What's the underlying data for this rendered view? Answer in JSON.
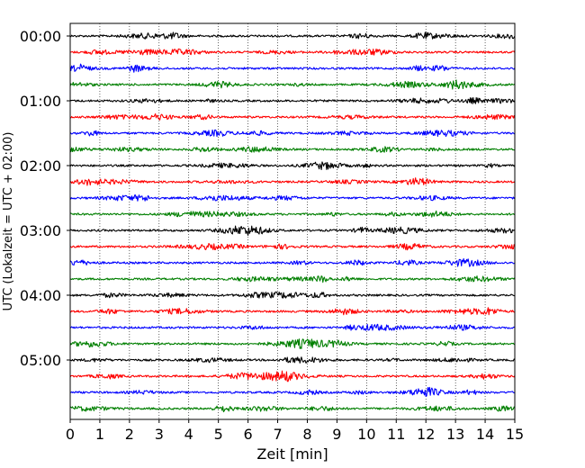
{
  "chart_data": {
    "type": "line",
    "title": "",
    "xlabel": "Zeit  [min]",
    "ylabel": "UTC (Lokalzeit = UTC + 02:00)",
    "xlim": [
      0,
      15
    ],
    "x_ticks": [
      0,
      1,
      2,
      3,
      4,
      5,
      6,
      7,
      8,
      9,
      10,
      11,
      12,
      13,
      14,
      15
    ],
    "y_tick_labels": [
      "00:00",
      "01:00",
      "02:00",
      "03:00",
      "04:00",
      "05:00"
    ],
    "grid": "vertical dotted at x ticks",
    "trace_interval_minutes": 15,
    "trace_count": 24,
    "trace_colors": [
      "#000000",
      "#ff0000",
      "#0000ff",
      "#007f00"
    ],
    "series": [
      {
        "start": "00:00",
        "color": "#000000"
      },
      {
        "start": "00:15",
        "color": "#ff0000"
      },
      {
        "start": "00:30",
        "color": "#0000ff"
      },
      {
        "start": "00:45",
        "color": "#007f00"
      },
      {
        "start": "01:00",
        "color": "#000000"
      },
      {
        "start": "01:15",
        "color": "#ff0000"
      },
      {
        "start": "01:30",
        "color": "#0000ff"
      },
      {
        "start": "01:45",
        "color": "#007f00"
      },
      {
        "start": "02:00",
        "color": "#000000"
      },
      {
        "start": "02:15",
        "color": "#ff0000"
      },
      {
        "start": "02:30",
        "color": "#0000ff"
      },
      {
        "start": "02:45",
        "color": "#007f00"
      },
      {
        "start": "03:00",
        "color": "#000000"
      },
      {
        "start": "03:15",
        "color": "#ff0000"
      },
      {
        "start": "03:30",
        "color": "#0000ff"
      },
      {
        "start": "03:45",
        "color": "#007f00"
      },
      {
        "start": "04:00",
        "color": "#000000"
      },
      {
        "start": "04:15",
        "color": "#ff0000"
      },
      {
        "start": "04:30",
        "color": "#0000ff"
      },
      {
        "start": "04:45",
        "color": "#007f00"
      },
      {
        "start": "05:00",
        "color": "#000000"
      },
      {
        "start": "05:15",
        "color": "#ff0000"
      },
      {
        "start": "05:30",
        "color": "#0000ff"
      },
      {
        "start": "05:45",
        "color": "#007f00"
      }
    ]
  }
}
